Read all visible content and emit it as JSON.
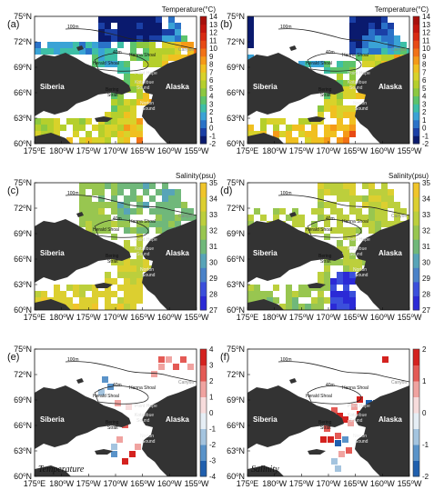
{
  "panels": [
    {
      "id": "a",
      "label": "(a)",
      "field": "temperature",
      "colorbar_title": "Temperature(°C)",
      "ticks": [
        "14",
        "13",
        "12",
        "11",
        "10",
        "9",
        "8",
        "7",
        "6",
        "5",
        "4",
        "3",
        "2",
        "1",
        "0",
        "-1",
        "-2"
      ],
      "scheme": "temp",
      "note": ""
    },
    {
      "id": "b",
      "label": "(b)",
      "field": "temperature",
      "colorbar_title": "Temperature(°C)",
      "ticks": [
        "14",
        "13",
        "12",
        "11",
        "10",
        "9",
        "8",
        "7",
        "6",
        "5",
        "4",
        "3",
        "2",
        "1",
        "0",
        "-1",
        "-2"
      ],
      "scheme": "temp",
      "note": ""
    },
    {
      "id": "c",
      "label": "(c)",
      "field": "salinity",
      "colorbar_title": "Salinity(psu)",
      "ticks": [
        "35",
        "34",
        "33",
        "32",
        "31",
        "30",
        "29",
        "28",
        "27"
      ],
      "scheme": "sal",
      "note": ""
    },
    {
      "id": "d",
      "label": "(d)",
      "field": "salinity",
      "colorbar_title": "Salinity(psu)",
      "ticks": [
        "35",
        "34",
        "33",
        "32",
        "31",
        "30",
        "29",
        "28",
        "27"
      ],
      "scheme": "sal",
      "note": ""
    },
    {
      "id": "e",
      "label": "(e)",
      "field": "temperature difference",
      "colorbar_title": "",
      "ticks": [
        "4",
        "3",
        "2",
        "1",
        "0",
        "-1",
        "-2",
        "-3",
        "-4"
      ],
      "scheme": "div",
      "note": "Temperature"
    },
    {
      "id": "f",
      "label": "(f)",
      "field": "salinity difference",
      "colorbar_title": "",
      "ticks": [
        "2",
        "1",
        "0",
        "-1",
        "-2"
      ],
      "scheme": "div",
      "note": "Salinity"
    }
  ],
  "axes": {
    "lat_ticks": [
      "60",
      "63",
      "66",
      "69",
      "72",
      "75"
    ],
    "lat_suffix": "N",
    "lon_ticks": [
      "175",
      "180",
      "175",
      "170",
      "165",
      "160",
      "155"
    ],
    "lon_suffix": [
      "E",
      "W",
      "W",
      "W",
      "W",
      "W",
      "W"
    ]
  },
  "place_names": {
    "siberia": "Siberia",
    "alaska": "Alaska",
    "bering": "Bering",
    "strait": "Strait",
    "herald": "Herald Shoal",
    "hanna": "Hanna Shoal",
    "point_hope": "Point Hope",
    "kotzebue": "Kotzebue",
    "sound": "Sound",
    "norton": "Norton",
    "norton_sound": "Sound",
    "isobath_100": "100m",
    "isobath_40": "40m",
    "canyon": "Canyon"
  },
  "colors": {
    "land": "#333333",
    "temp_scale": [
      "#0a1a6e",
      "#1a3fa6",
      "#2a72c8",
      "#3aa3d6",
      "#3ebfa6",
      "#5cc46c",
      "#8cc840",
      "#b5cf2c",
      "#d8d22a",
      "#f0c020",
      "#f59a18",
      "#f27216",
      "#e84a14",
      "#d92a12",
      "#c4160e",
      "#a8100c"
    ],
    "sal_scale": [
      "#2b2ad6",
      "#3b4fdc",
      "#4a82c8",
      "#57a4b8",
      "#70b87a",
      "#98c650",
      "#bccf3c",
      "#dccf30",
      "#f0c52a"
    ],
    "div_scale": [
      "#1f5fae",
      "#5a93c9",
      "#a4c4df",
      "#e6eef5",
      "#f7dcdc",
      "#f0a3a0",
      "#e45a55",
      "#d4221f"
    ]
  }
}
